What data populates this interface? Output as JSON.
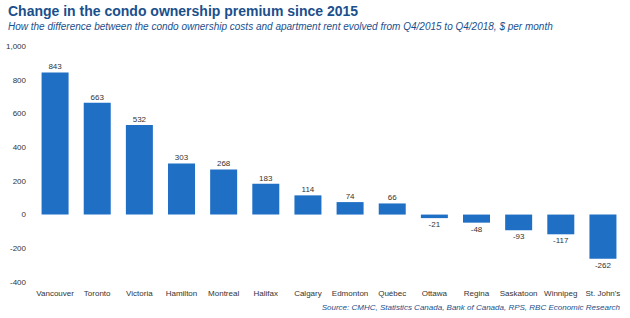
{
  "chart_data": {
    "type": "bar",
    "title": "Change in the condo ownership premium since 2015",
    "subtitle": "How the difference between the condo ownership costs and apartment rent evolved from Q4/2015 to Q4/2018, $ per month",
    "source": "Source: CMHC, Statistics Canada, Bank of Canada, RPS, RBC Economic Research",
    "categories": [
      "Vancouver",
      "Toronto",
      "Victoria",
      "Hamilton",
      "Montreal",
      "Halifax",
      "Calgary",
      "Edmonton",
      "Québec",
      "Ottawa",
      "Regina",
      "Saskatoon",
      "Winnipeg",
      "St. John's"
    ],
    "values": [
      843,
      663,
      532,
      303,
      268,
      183,
      114,
      74,
      66,
      -21,
      -48,
      -93,
      -117,
      -262
    ],
    "color": "#1f6fc5",
    "ylim": [
      -400,
      1000
    ],
    "yticks": [
      -400,
      -200,
      0,
      200,
      400,
      600,
      800,
      {
        "value": 1000,
        "label": "1,000"
      }
    ],
    "grid": false,
    "data_labels": true
  }
}
